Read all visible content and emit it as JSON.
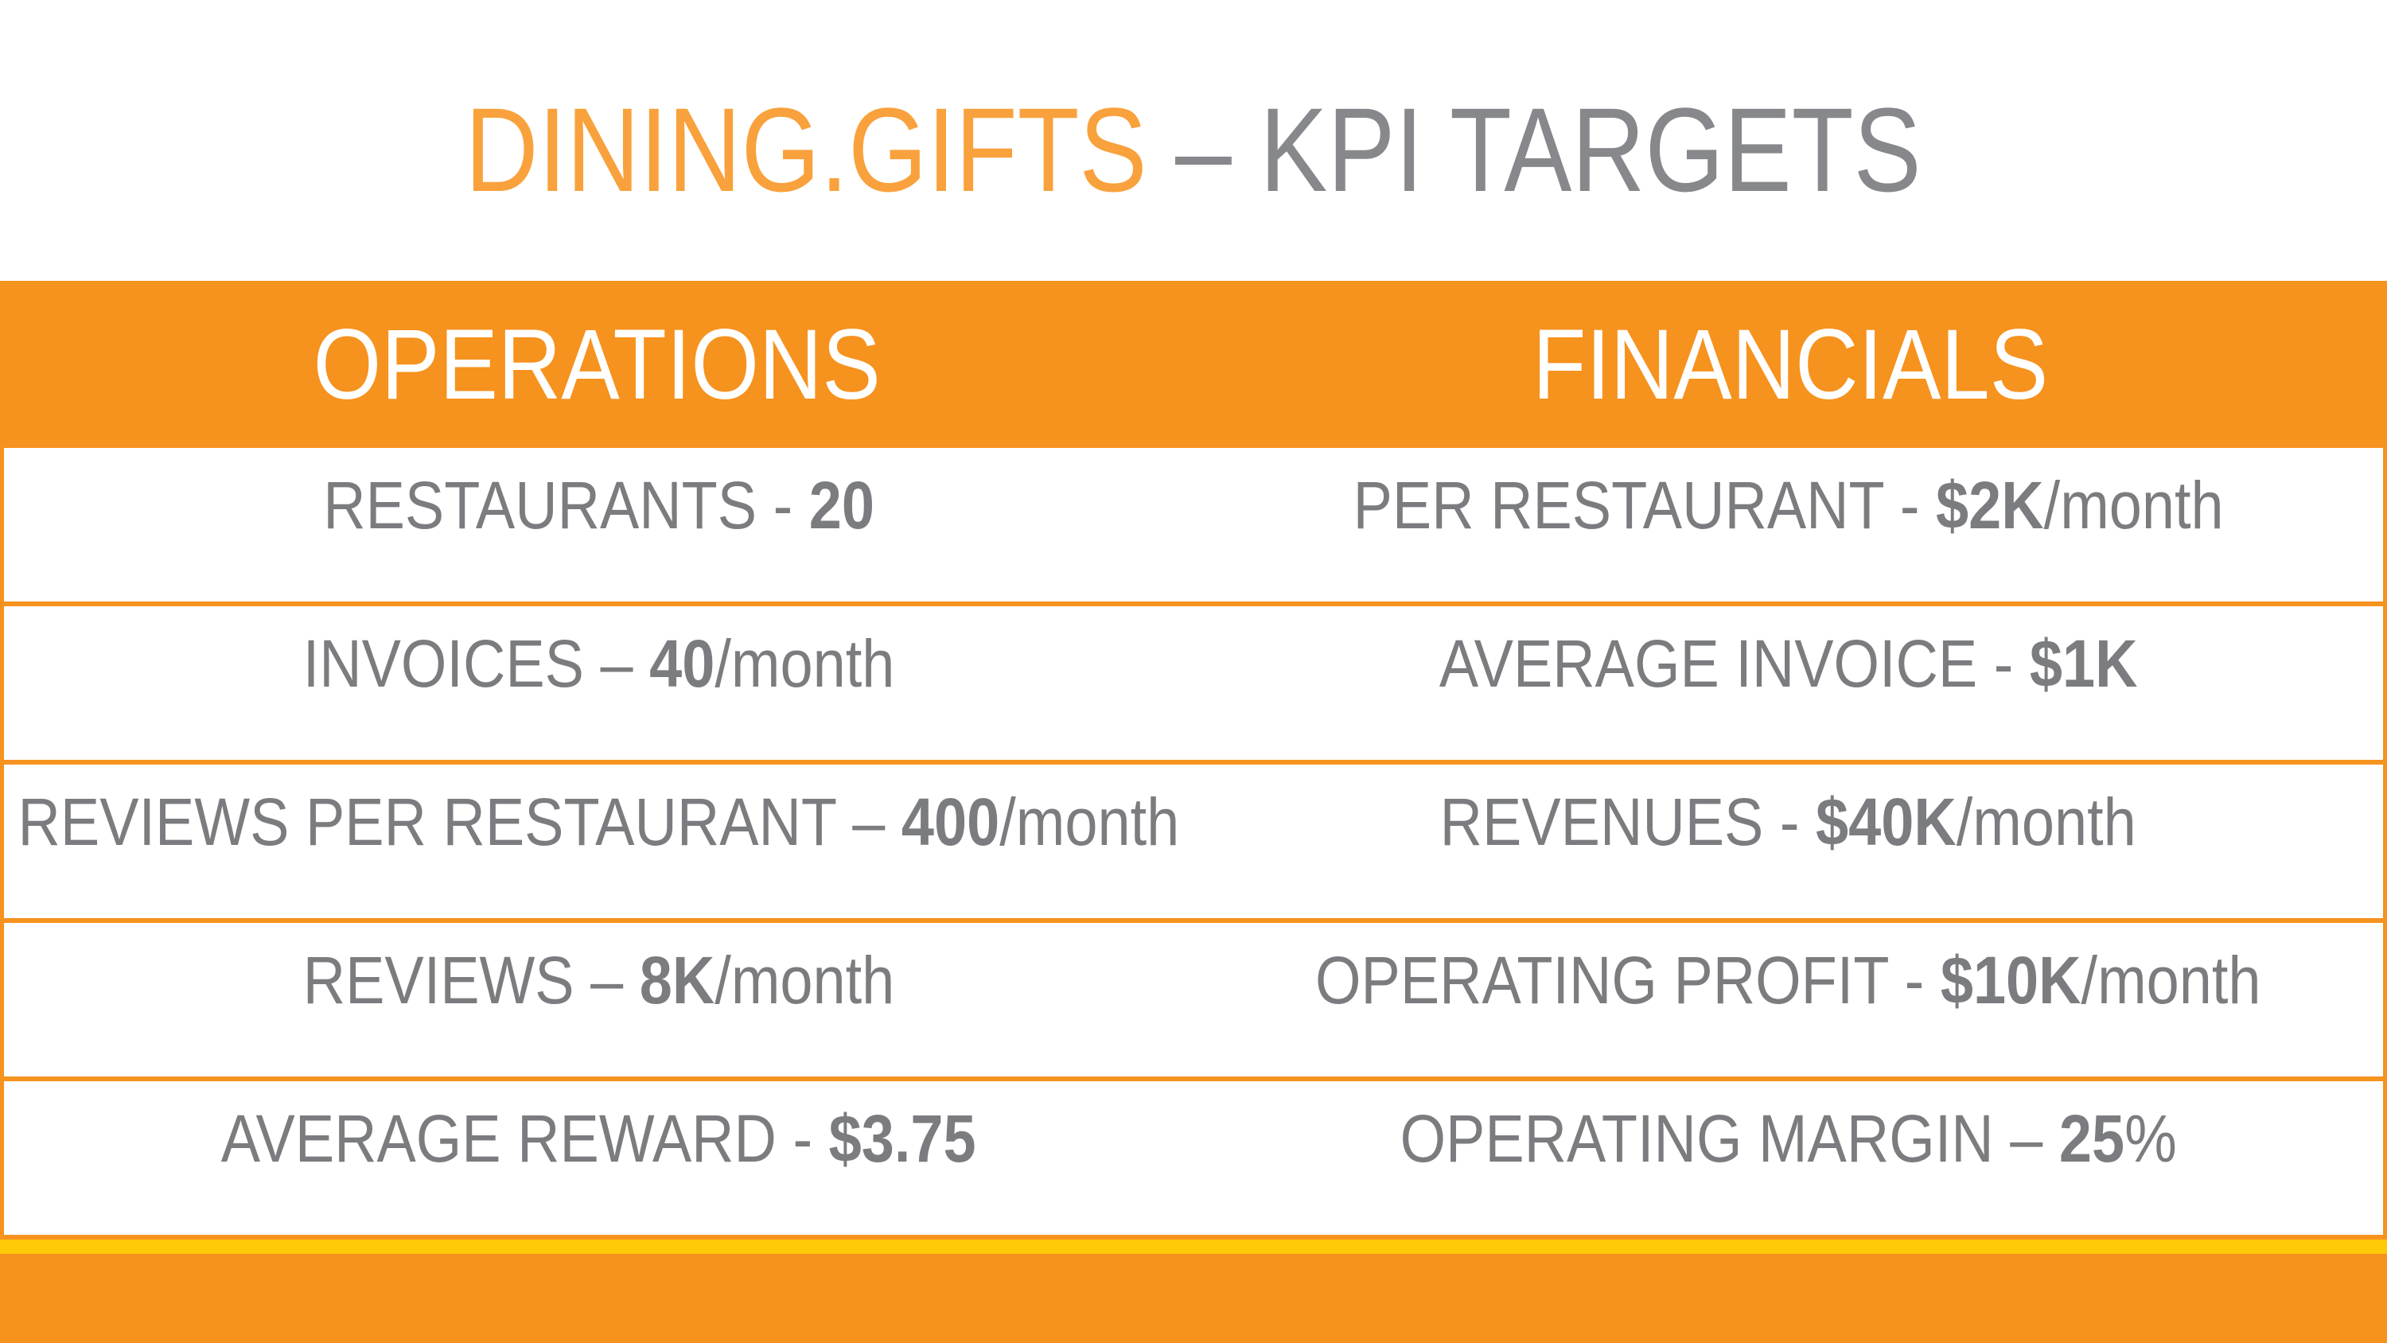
{
  "title": {
    "brand": "DINING.GIFTS",
    "dash": " – ",
    "rest": "KPI TARGETS"
  },
  "colors": {
    "header_orange": "#F6921E",
    "title_orange": "#F9A13C",
    "footer_orange": "#F6921E",
    "band_yellow": "#FFC907",
    "text_gray": "#7B7C7F",
    "header_text": "#FFFFFF"
  },
  "table": {
    "headers": [
      "OPERATIONS",
      "FINANCIALS"
    ],
    "rows": [
      {
        "left": [
          {
            "t": "RESTAURANTS  - ",
            "b": false
          },
          {
            "t": "20",
            "b": true
          }
        ],
        "right": [
          {
            "t": "PER RESTAURANT - ",
            "b": false
          },
          {
            "t": "$2K",
            "b": true
          },
          {
            "t": "/month",
            "b": false
          }
        ]
      },
      {
        "left": [
          {
            "t": "INVOICES – ",
            "b": false
          },
          {
            "t": "40",
            "b": true
          },
          {
            "t": "/month",
            "b": false
          }
        ],
        "right": [
          {
            "t": "AVERAGE INVOICE - ",
            "b": false
          },
          {
            "t": "$1K",
            "b": true
          }
        ]
      },
      {
        "left": [
          {
            "t": "REVIEWS PER RESTAURANT – ",
            "b": false
          },
          {
            "t": "400",
            "b": true
          },
          {
            "t": "/month",
            "b": false
          }
        ],
        "right": [
          {
            "t": "REVENUES - ",
            "b": false
          },
          {
            "t": "$40K",
            "b": true
          },
          {
            "t": "/month",
            "b": false
          }
        ]
      },
      {
        "left": [
          {
            "t": "REVIEWS – ",
            "b": false
          },
          {
            "t": "8K",
            "b": true
          },
          {
            "t": "/month",
            "b": false
          }
        ],
        "right": [
          {
            "t": "OPERATING PROFIT - ",
            "b": false
          },
          {
            "t": "$10K",
            "b": true
          },
          {
            "t": "/month",
            "b": false
          }
        ]
      },
      {
        "left": [
          {
            "t": "AVERAGE REWARD - ",
            "b": false
          },
          {
            "t": "$3.75",
            "b": true
          }
        ],
        "right": [
          {
            "t": "OPERATING MARGIN – ",
            "b": false
          },
          {
            "t": "25",
            "b": true
          },
          {
            "t": "%",
            "b": false
          }
        ]
      }
    ]
  }
}
